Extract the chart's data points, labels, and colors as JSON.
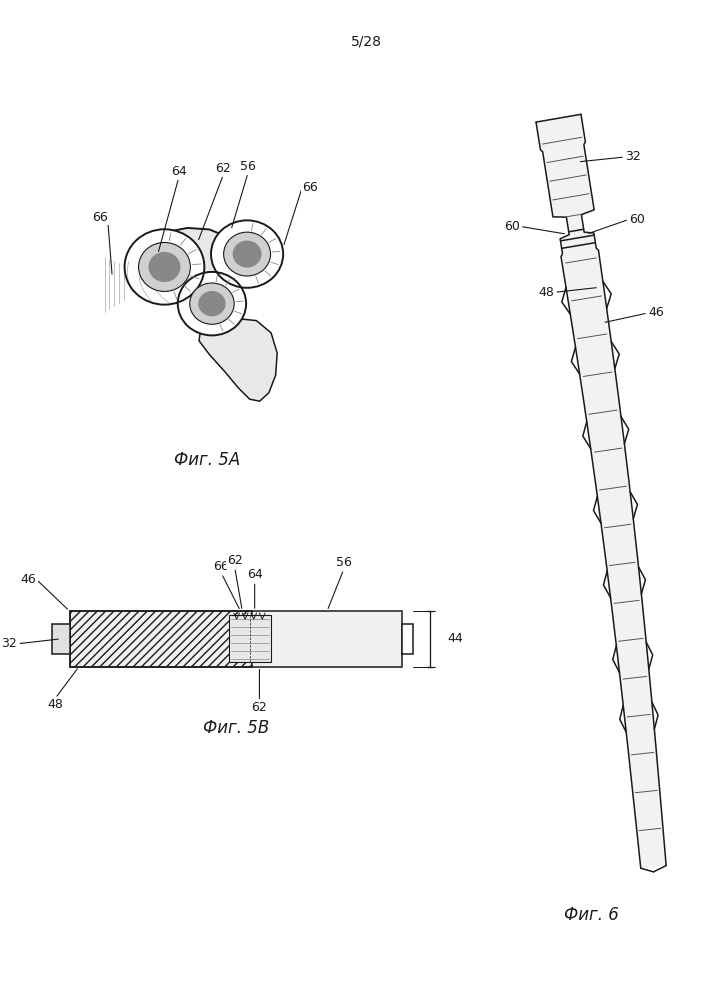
{
  "page_label": "5/28",
  "fig5a_label": "Фиг. 5А",
  "fig5b_label": "Фиг. 5В",
  "fig6_label": "Фиг. 6",
  "bg_color": "#ffffff",
  "line_color": "#1a1a1a",
  "lw": 1.1,
  "font_size_label": 11,
  "font_size_ref": 9
}
